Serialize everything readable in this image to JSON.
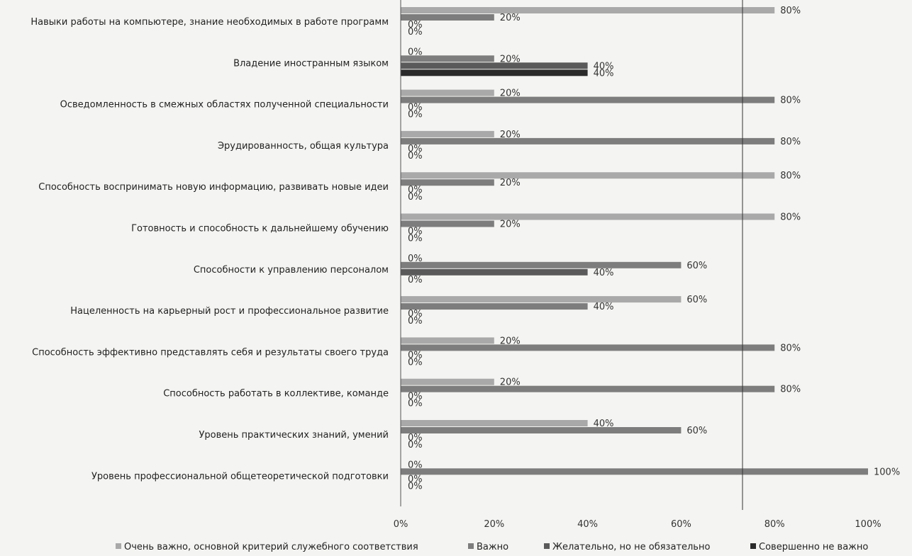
{
  "chart_data": {
    "type": "bar",
    "orientation": "horizontal",
    "categories": [
      "Навыки работы на компьютере, знание необходимых в работе программ",
      "Владение иностранным языком",
      "Осведомленность в смежных областях полученной специальности",
      "Эрудированность, общая культура",
      "Способность воспринимать новую информацию, развивать новые идеи",
      "Готовность и способность к дальнейшему обучению",
      "Способности к управлению персоналом",
      "Нацеленность на карьерный рост и профессиональное развитие",
      "Способность эффективно представлять себя и результаты своего труда",
      "Способность работать в коллективе, команде",
      "Уровень практических знаний, умений",
      "Уровень профессиональной общетеоретической подготовки"
    ],
    "series": [
      {
        "name": "Очень важно, основной критерий служебного соответствия",
        "color": "#a9a9a9",
        "values": [
          80,
          0,
          20,
          20,
          80,
          80,
          0,
          60,
          20,
          20,
          40,
          0
        ]
      },
      {
        "name": "Важно",
        "color": "#7d7d7d",
        "values": [
          20,
          20,
          80,
          80,
          20,
          20,
          60,
          40,
          80,
          80,
          60,
          100
        ]
      },
      {
        "name": "Желательно, но не обязательно",
        "color": "#5a5a5a",
        "values": [
          0,
          40,
          0,
          0,
          0,
          0,
          40,
          0,
          0,
          0,
          0,
          0
        ]
      },
      {
        "name": "Совершенно не важно",
        "color": "#2a2a2a",
        "values": [
          0,
          40,
          0,
          0,
          0,
          0,
          0,
          0,
          0,
          0,
          0,
          0
        ]
      }
    ],
    "value_suffix": "%",
    "xlim": [
      0,
      100
    ],
    "xticks": [
      0,
      20,
      40,
      60,
      80,
      100
    ],
    "legend_position": "bottom",
    "grid": false
  }
}
